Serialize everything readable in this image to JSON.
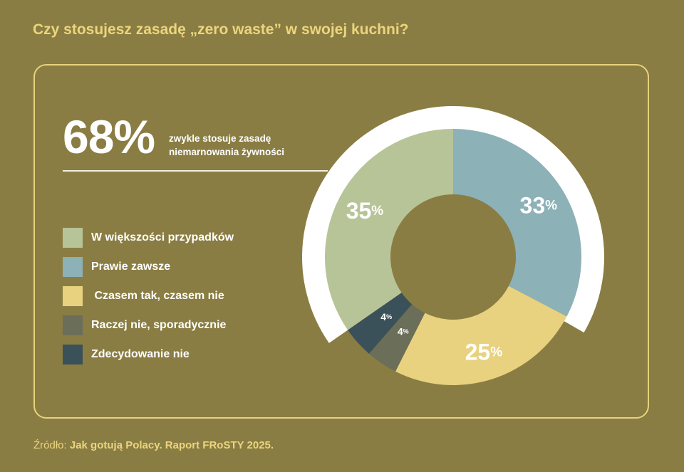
{
  "title": "Czy stosujesz zasadę „zero waste” w swojej kuchni?",
  "headline": {
    "value": "68%",
    "text_line1": "zwykle stosuje zasadę",
    "text_line2": "niemarnowania żywności"
  },
  "source": {
    "prefix": "Źródło:",
    "text": "Jak gotują Polacy. Raport FRoSTY 2025."
  },
  "colors": {
    "background": "#8a7d43",
    "accent": "#ebd57e",
    "arc": "#ffffff"
  },
  "chart_data": {
    "type": "pie",
    "style": "donut",
    "categories": [
      "W większości przypadków",
      "Prawie zawsze",
      " Czasem tak, czasem nie",
      "Raczej nie, sporadycznie",
      "Zdecydowanie nie"
    ],
    "values": [
      35,
      33,
      25,
      4,
      4
    ],
    "labels": [
      "35%",
      "33%",
      "25%",
      "4%",
      "4%"
    ],
    "colors": [
      "#b7c497",
      "#8cb1b7",
      "#e8d27f",
      "#6b6e58",
      "#3b5159"
    ],
    "highlight_arc_value": 68,
    "legend_position": "left"
  }
}
